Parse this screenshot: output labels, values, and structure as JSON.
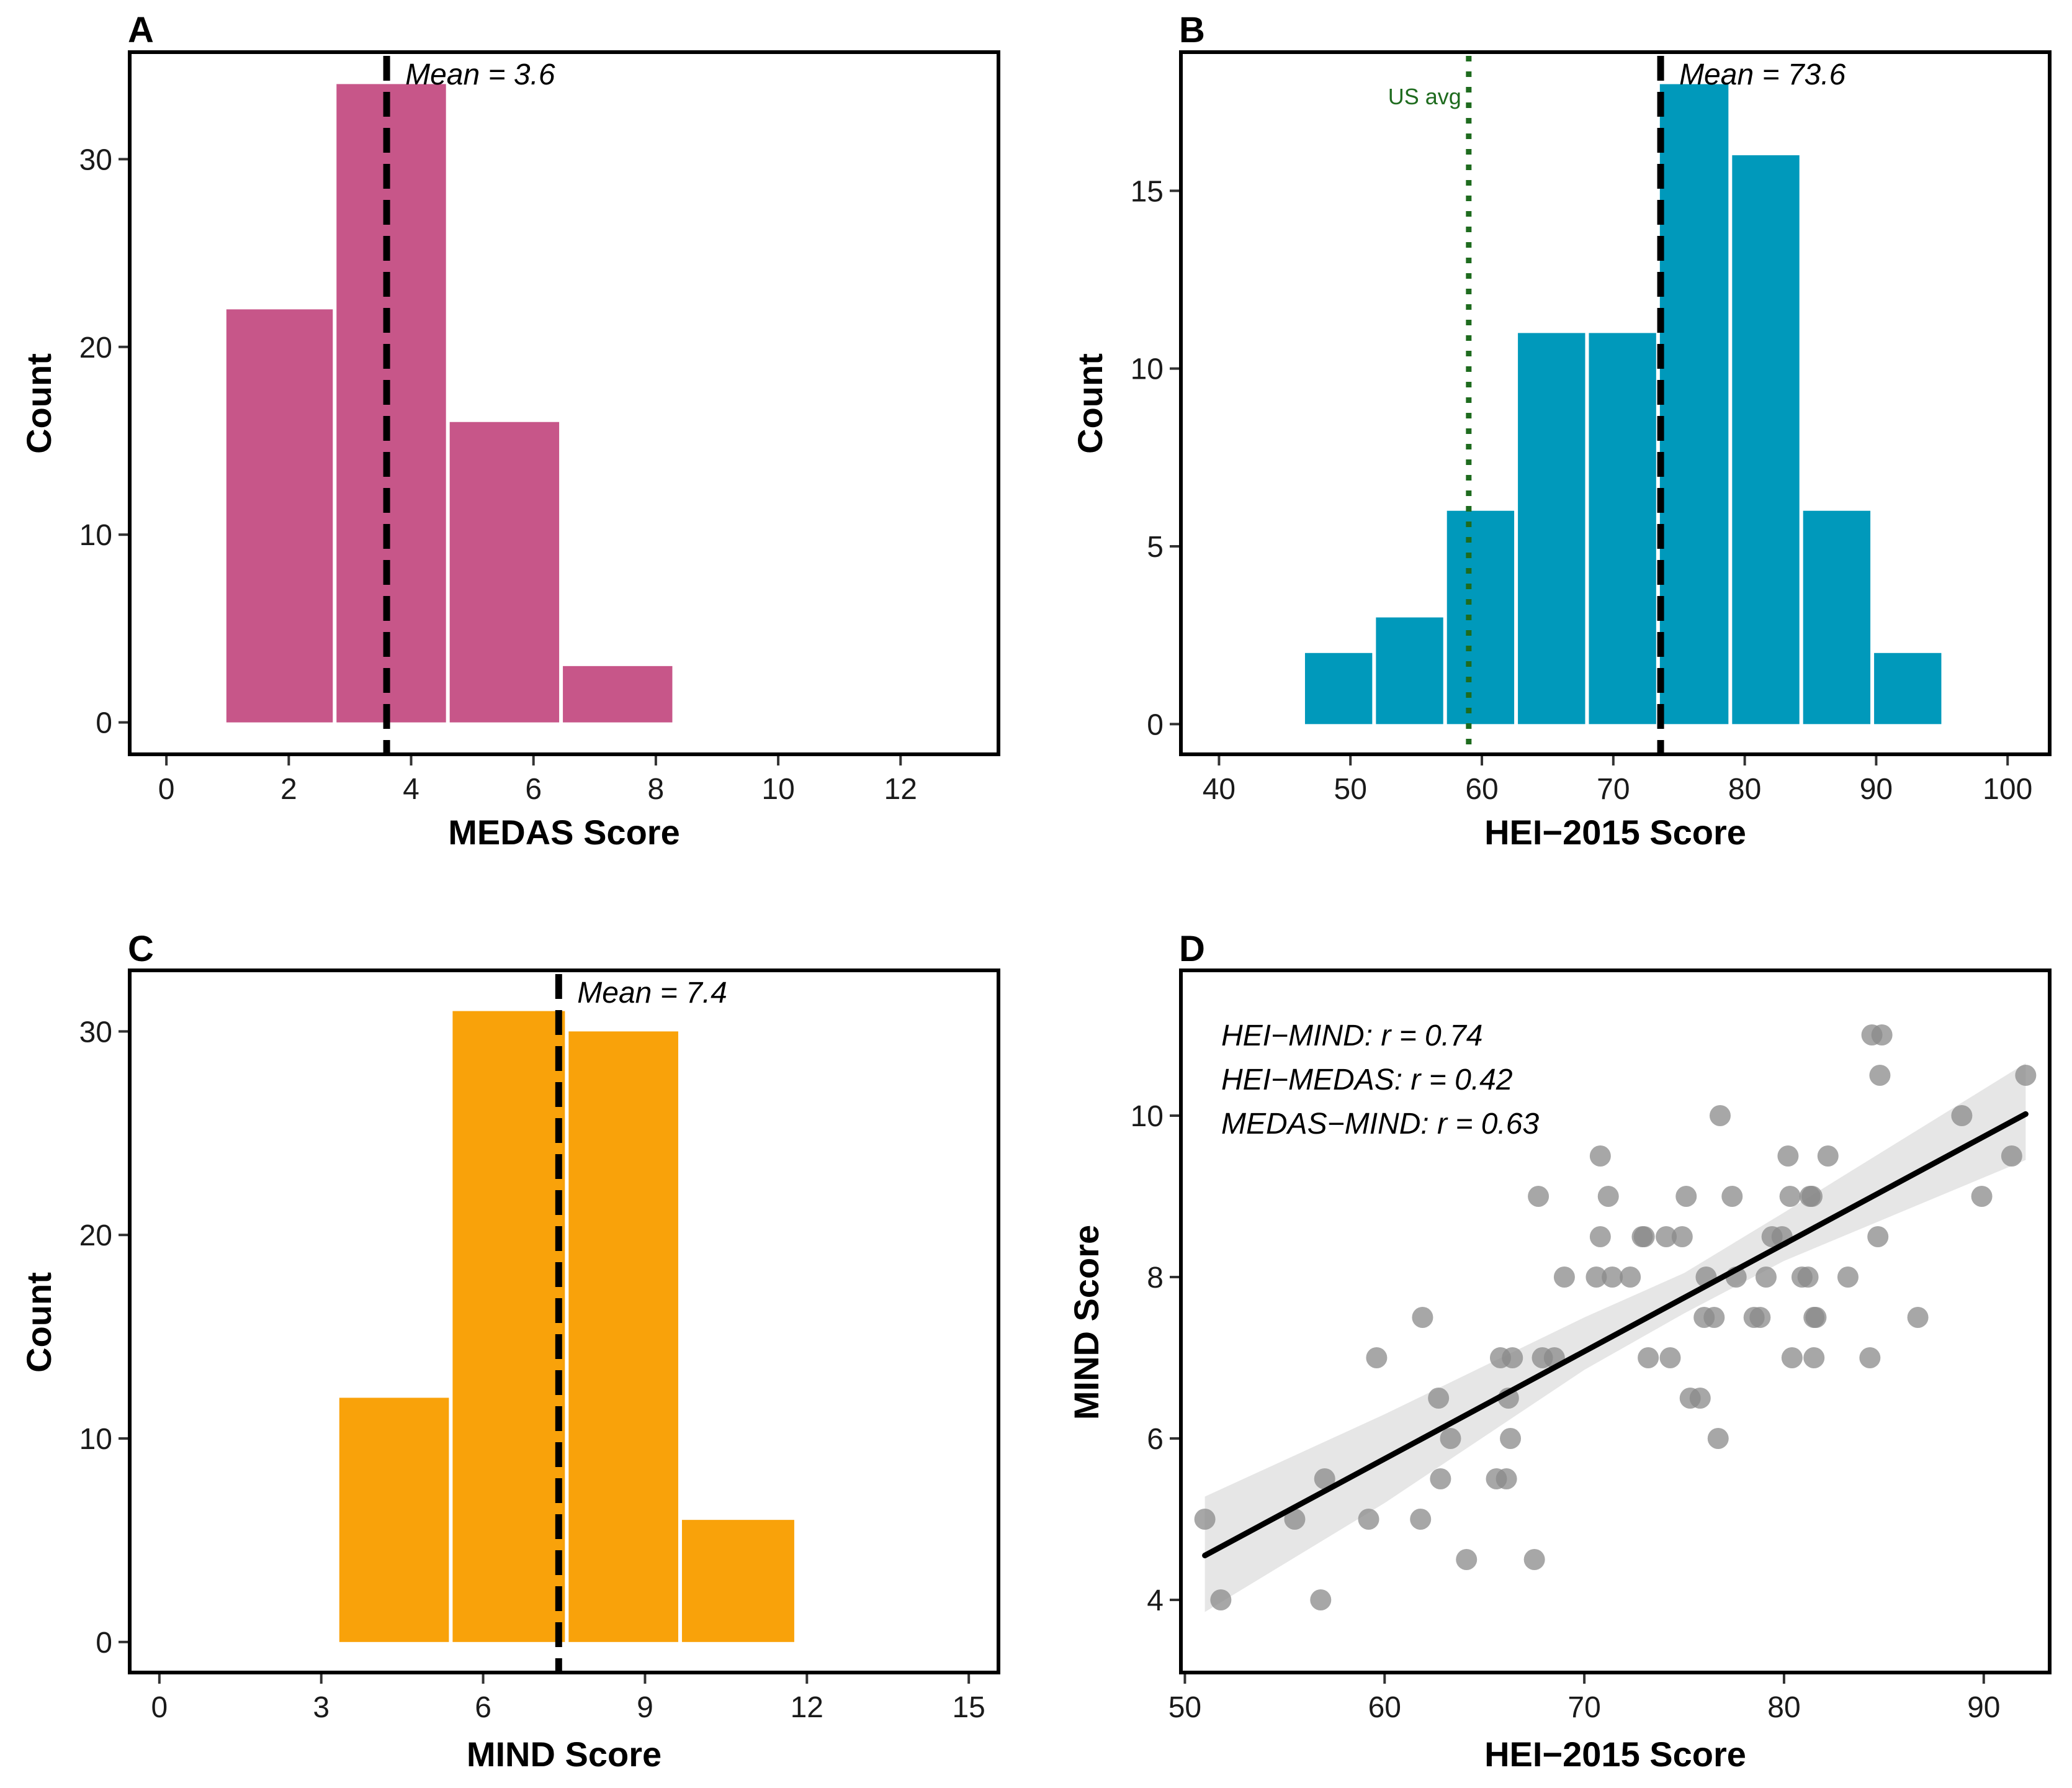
{
  "chart_data": [
    {
      "panel": "A",
      "type": "bar",
      "xlabel": "MEDAS Score",
      "ylabel": "Count",
      "xlim": [
        -0.6,
        13.6
      ],
      "ylim": [
        -1.7,
        35.7
      ],
      "xticks": [
        0,
        2,
        4,
        6,
        8,
        10,
        12
      ],
      "yticks": [
        0,
        10,
        20,
        30
      ],
      "bins": [
        {
          "x0": 0.95,
          "x1": 2.75,
          "count": 22
        },
        {
          "x0": 2.75,
          "x1": 4.6,
          "count": 34
        },
        {
          "x0": 4.6,
          "x1": 6.45,
          "count": 16
        },
        {
          "x0": 6.45,
          "x1": 8.3,
          "count": 3
        }
      ],
      "color": "#C75689",
      "mean": 3.6,
      "mean_label": "Mean = 3.6"
    },
    {
      "panel": "B",
      "type": "bar",
      "xlabel": "HEI−2015 Score",
      "ylabel": "Count",
      "xlim": [
        37.1,
        103.2
      ],
      "ylim": [
        -0.85,
        18.9
      ],
      "xticks": [
        40,
        50,
        60,
        70,
        80,
        90,
        100
      ],
      "yticks": [
        0,
        5,
        10,
        15
      ],
      "bins": [
        {
          "x0": 46.4,
          "x1": 51.8,
          "count": 2
        },
        {
          "x0": 51.8,
          "x1": 57.2,
          "count": 3
        },
        {
          "x0": 57.2,
          "x1": 62.6,
          "count": 6
        },
        {
          "x0": 62.6,
          "x1": 68.0,
          "count": 11
        },
        {
          "x0": 68.0,
          "x1": 73.4,
          "count": 11
        },
        {
          "x0": 73.4,
          "x1": 78.9,
          "count": 18
        },
        {
          "x0": 78.9,
          "x1": 84.3,
          "count": 16
        },
        {
          "x0": 84.3,
          "x1": 89.7,
          "count": 6
        },
        {
          "x0": 89.7,
          "x1": 95.1,
          "count": 2
        }
      ],
      "color": "#0099BB",
      "mean": 73.6,
      "mean_label": "Mean = 73.6",
      "reference": 59.0,
      "reference_label": "US avg",
      "reference_color": "#1E6B1E"
    },
    {
      "panel": "C",
      "type": "bar",
      "xlabel": "MIND Score",
      "ylabel": "Count",
      "xlim": [
        -0.55,
        15.55
      ],
      "ylim": [
        -1.5,
        33.0
      ],
      "xticks": [
        0,
        3,
        6,
        9,
        12,
        15
      ],
      "yticks": [
        0,
        10,
        20,
        30
      ],
      "bins": [
        {
          "x0": 3.3,
          "x1": 5.4,
          "count": 12
        },
        {
          "x0": 5.4,
          "x1": 7.55,
          "count": 31
        },
        {
          "x0": 7.55,
          "x1": 9.65,
          "count": 30
        },
        {
          "x0": 9.65,
          "x1": 11.8,
          "count": 6
        }
      ],
      "color": "#F9A20A",
      "mean": 7.4,
      "mean_label": "Mean = 7.4"
    },
    {
      "panel": "D",
      "type": "scatter",
      "xlabel": "HEI−2015 Score",
      "ylabel": "MIND Score",
      "xlim": [
        49.8,
        93.3
      ],
      "ylim": [
        3.1,
        11.8
      ],
      "xticks": [
        50,
        60,
        70,
        80,
        90
      ],
      "yticks": [
        4,
        6,
        8,
        10
      ],
      "points": [
        [
          51.0,
          5.0
        ],
        [
          51.8,
          4.0
        ],
        [
          55.5,
          5.0
        ],
        [
          56.8,
          4.0
        ],
        [
          57.0,
          5.5
        ],
        [
          59.2,
          5.0
        ],
        [
          59.6,
          7.0
        ],
        [
          61.8,
          5.0
        ],
        [
          61.9,
          7.5
        ],
        [
          62.7,
          6.5
        ],
        [
          62.8,
          5.5
        ],
        [
          63.3,
          6.0
        ],
        [
          64.1,
          4.5
        ],
        [
          65.6,
          5.5
        ],
        [
          65.8,
          7.0
        ],
        [
          66.1,
          5.5
        ],
        [
          66.2,
          6.5
        ],
        [
          66.3,
          6.0
        ],
        [
          66.4,
          7.0
        ],
        [
          67.5,
          4.5
        ],
        [
          67.7,
          9.0
        ],
        [
          67.9,
          7.0
        ],
        [
          68.5,
          7.0
        ],
        [
          69.0,
          8.0
        ],
        [
          70.6,
          8.0
        ],
        [
          70.8,
          9.5
        ],
        [
          70.8,
          8.5
        ],
        [
          71.2,
          9.0
        ],
        [
          71.4,
          8.0
        ],
        [
          72.3,
          8.0
        ],
        [
          72.9,
          8.5
        ],
        [
          73.0,
          8.5
        ],
        [
          73.2,
          7.0
        ],
        [
          74.1,
          8.5
        ],
        [
          74.3,
          7.0
        ],
        [
          74.9,
          8.5
        ],
        [
          75.1,
          9.0
        ],
        [
          75.3,
          6.5
        ],
        [
          75.8,
          6.5
        ],
        [
          76.0,
          7.5
        ],
        [
          76.1,
          8.0
        ],
        [
          76.5,
          7.5
        ],
        [
          76.7,
          6.0
        ],
        [
          76.8,
          10.0
        ],
        [
          77.4,
          9.0
        ],
        [
          77.6,
          8.0
        ],
        [
          78.5,
          7.5
        ],
        [
          78.8,
          7.5
        ],
        [
          79.1,
          8.0
        ],
        [
          79.4,
          8.5
        ],
        [
          79.9,
          8.5
        ],
        [
          80.2,
          9.5
        ],
        [
          80.3,
          9.0
        ],
        [
          80.4,
          7.0
        ],
        [
          80.9,
          8.0
        ],
        [
          81.2,
          8.0
        ],
        [
          81.3,
          9.0
        ],
        [
          81.4,
          9.0
        ],
        [
          81.5,
          7.0
        ],
        [
          81.5,
          7.5
        ],
        [
          81.6,
          7.5
        ],
        [
          82.2,
          9.5
        ],
        [
          83.2,
          8.0
        ],
        [
          84.3,
          7.0
        ],
        [
          84.4,
          11.0
        ],
        [
          84.7,
          8.5
        ],
        [
          84.8,
          10.5
        ],
        [
          84.9,
          11.0
        ],
        [
          86.7,
          7.5
        ],
        [
          88.9,
          10.0
        ],
        [
          89.9,
          9.0
        ],
        [
          91.4,
          9.5
        ],
        [
          92.1,
          10.5
        ]
      ],
      "fit_line": {
        "x": [
          51.0,
          92.1
        ],
        "y": [
          4.55,
          10.02
        ]
      },
      "confidence_band": {
        "x": [
          51.0,
          60.0,
          70.0,
          75.0,
          80.0,
          92.1
        ],
        "lower": [
          3.85,
          5.2,
          6.85,
          7.55,
          8.2,
          9.45
        ],
        "upper": [
          5.28,
          6.3,
          7.5,
          8.05,
          8.8,
          10.65
        ]
      },
      "point_color": "#8A8A8A",
      "annotations": [
        "HEI−MIND: r = 0.74",
        "HEI−MEDAS: r = 0.42",
        "MEDAS−MIND: r = 0.63"
      ]
    }
  ]
}
